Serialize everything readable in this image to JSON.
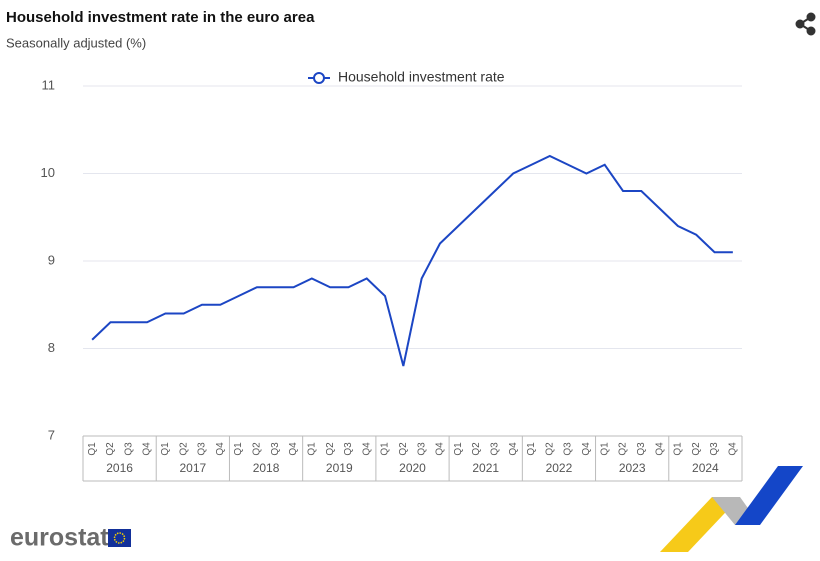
{
  "chart_data": {
    "type": "line",
    "title": "Household investment rate in the euro area",
    "subtitle": "Seasonally adjusted (%)",
    "categories": [
      "Q1",
      "Q2",
      "Q3",
      "Q4",
      "Q1",
      "Q2",
      "Q3",
      "Q4",
      "Q1",
      "Q2",
      "Q3",
      "Q4",
      "Q1",
      "Q2",
      "Q3",
      "Q4",
      "Q1",
      "Q2",
      "Q3",
      "Q4",
      "Q1",
      "Q2",
      "Q3",
      "Q4",
      "Q1",
      "Q2",
      "Q3",
      "Q4",
      "Q1",
      "Q2",
      "Q3",
      "Q4",
      "Q1",
      "Q2",
      "Q3",
      "Q4"
    ],
    "years": [
      "2016",
      "2017",
      "2018",
      "2019",
      "2020",
      "2021",
      "2022",
      "2023",
      "2024"
    ],
    "series": [
      {
        "name": "Household investment rate",
        "color": "#1c46c4",
        "values": [
          8.1,
          8.3,
          8.3,
          8.3,
          8.4,
          8.4,
          8.5,
          8.5,
          8.6,
          8.7,
          8.7,
          8.7,
          8.8,
          8.7,
          8.7,
          8.8,
          8.6,
          7.8,
          8.8,
          9.2,
          9.4,
          9.6,
          9.8,
          10.0,
          10.1,
          10.2,
          10.1,
          10.0,
          10.1,
          9.8,
          9.8,
          9.6,
          9.4,
          9.3,
          9.1,
          9.1
        ]
      }
    ],
    "ylim": [
      7,
      11
    ],
    "yticks": [
      7,
      8,
      9,
      10,
      11
    ],
    "grid": true,
    "legend": "top"
  },
  "logo": "eurostat"
}
